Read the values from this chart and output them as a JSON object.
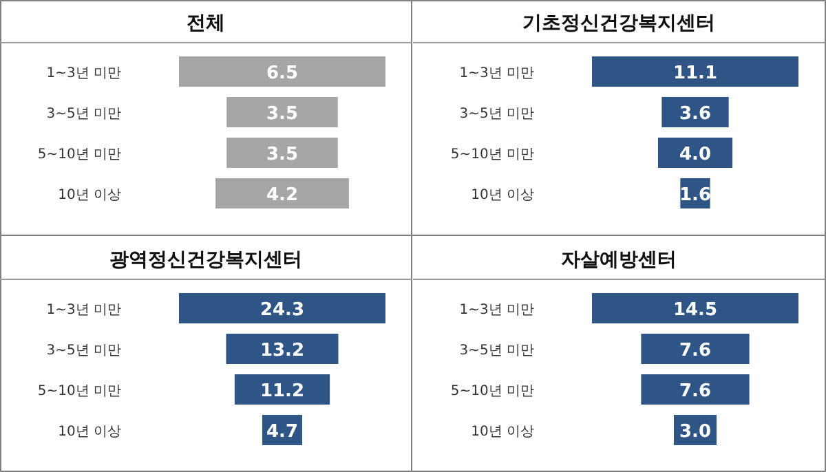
{
  "chart_data": [
    {
      "type": "other",
      "title": "전체",
      "categories": [
        "1~3년 미만",
        "3~5년 미만",
        "5~10년 미만",
        "10년 이상"
      ],
      "values": [
        6.5,
        3.5,
        3.5,
        4.2
      ],
      "value_labels": [
        "6.5",
        "3.5",
        "3.5",
        "4.2"
      ],
      "color": "#a6a6a6"
    },
    {
      "type": "other",
      "title": "기초정신건강복지센터",
      "categories": [
        "1~3년 미만",
        "3~5년 미만",
        "5~10년 미만",
        "10년 이상"
      ],
      "values": [
        11.1,
        3.6,
        4.0,
        1.6
      ],
      "value_labels": [
        "11.1",
        "3.6",
        "4.0",
        "1.6"
      ],
      "color": "#2f5486"
    },
    {
      "type": "other",
      "title": "광역정신건강복지센터",
      "categories": [
        "1~3년 미만",
        "3~5년 미만",
        "5~10년 미만",
        "10년 이상"
      ],
      "values": [
        24.3,
        13.2,
        11.2,
        4.7
      ],
      "value_labels": [
        "24.3",
        "13.2",
        "11.2",
        "4.7"
      ],
      "color": "#2f5486"
    },
    {
      "type": "other",
      "title": "자살예방센터",
      "categories": [
        "1~3년 미만",
        "3~5년 미만",
        "5~10년 미만",
        "10년 이상"
      ],
      "values": [
        14.5,
        7.6,
        7.6,
        3.0
      ],
      "value_labels": [
        "14.5",
        "7.6",
        "7.6",
        "3.0"
      ],
      "color": "#2f5486"
    }
  ]
}
